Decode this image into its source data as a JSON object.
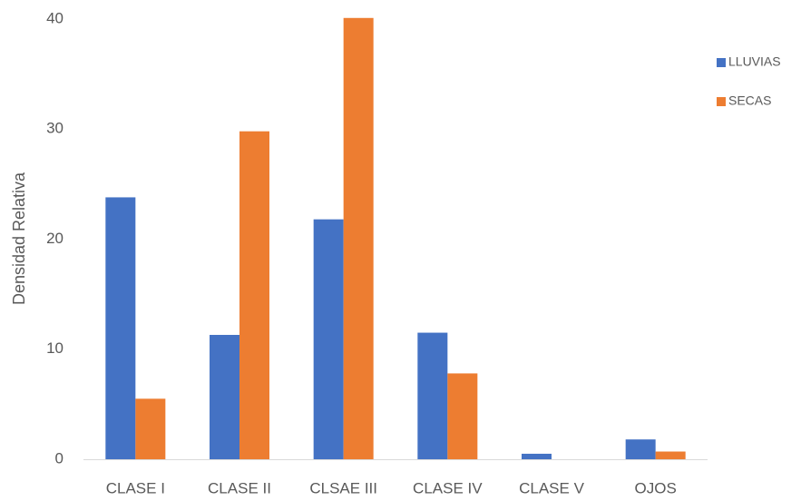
{
  "chart_data": {
    "type": "bar",
    "title": "",
    "xlabel": "",
    "ylabel": "Densidad Relativa",
    "categories": [
      "CLASE I",
      "CLASE II",
      "CLSAE III",
      "CLASE IV",
      "CLASE V",
      "OJOS"
    ],
    "series": [
      {
        "name": "LLUVIAS",
        "color": "#4472C4",
        "values": [
          23.8,
          11.3,
          21.8,
          11.5,
          0.5,
          1.8
        ]
      },
      {
        "name": "SECAS",
        "color": "#ED7D31",
        "values": [
          5.5,
          29.8,
          40.1,
          7.8,
          0,
          0.7
        ]
      }
    ],
    "ylim": [
      0,
      40
    ],
    "yticks": [
      0,
      10,
      20,
      30,
      40
    ],
    "grid": false,
    "legend_position": "right"
  }
}
